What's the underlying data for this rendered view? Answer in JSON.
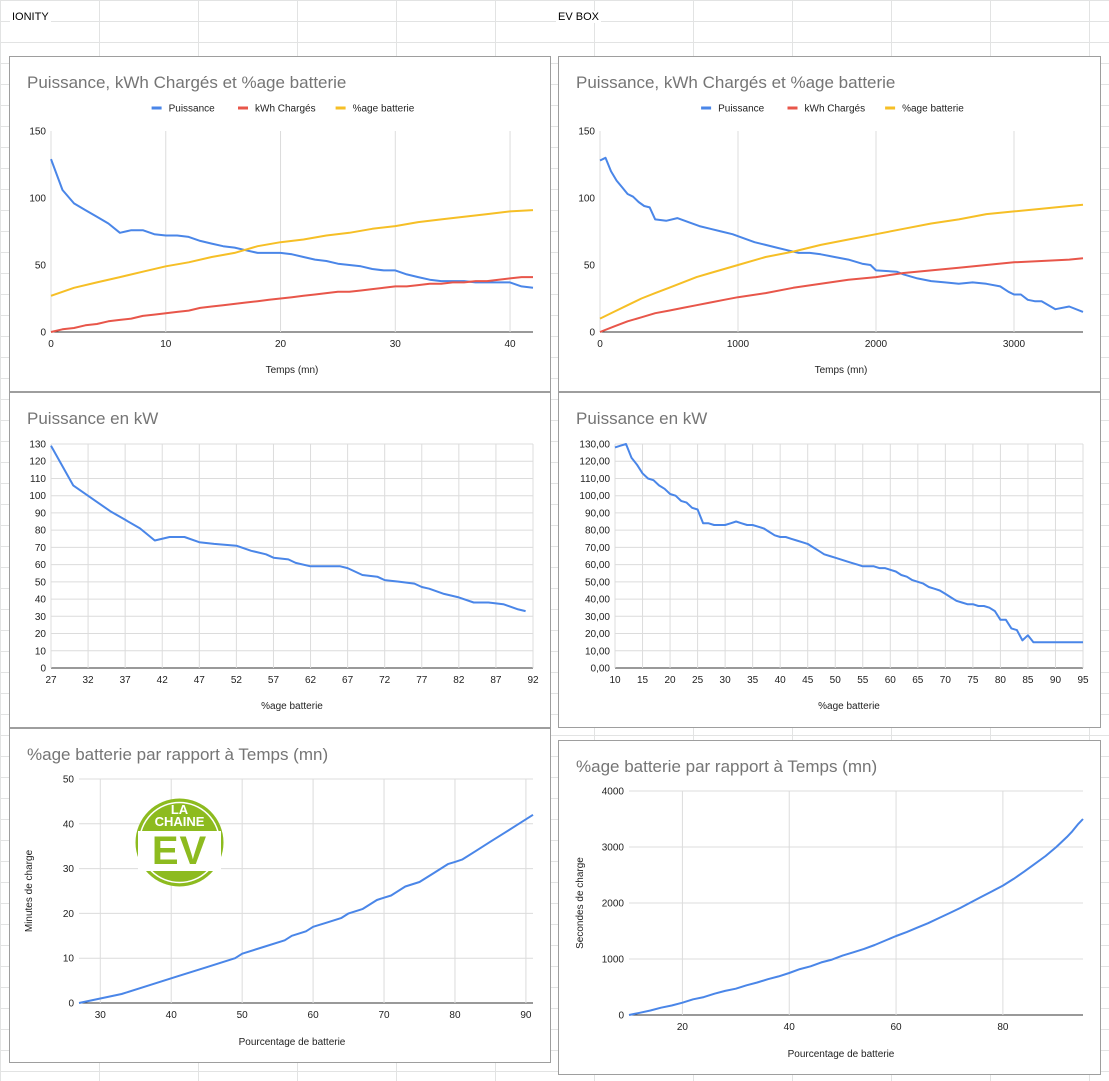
{
  "sheet": {
    "labels": [
      "IONITY",
      "EV BOX"
    ]
  },
  "logo": {
    "line1": "LA",
    "line2": "CHAINE",
    "line3": "EV",
    "color": "#8dbb1f"
  },
  "colors": {
    "Puissance": "#4a86e8",
    "kWh Chargés": "#e8564a",
    "%age batterie": "#f6bf26"
  },
  "chart_data": [
    {
      "id": "ionity-multi",
      "type": "line",
      "title": "Puissance, kWh Chargés et %age batterie",
      "xlabel": "Temps (mn)",
      "ylabel": "",
      "xlim": [
        0,
        42
      ],
      "ylim": [
        0,
        150
      ],
      "xticks": [
        0,
        10,
        20,
        30,
        40
      ],
      "yticks": [
        0,
        50,
        100,
        150
      ],
      "grid": "vertical",
      "legend": "top",
      "series": [
        {
          "name": "Puissance",
          "color": "#4a86e8",
          "x": [
            0,
            1,
            2,
            3,
            4,
            5,
            6,
            7,
            8,
            9,
            10,
            11,
            12,
            13,
            14,
            15,
            16,
            17,
            18,
            19,
            20,
            21,
            22,
            23,
            24,
            25,
            26,
            27,
            28,
            29,
            30,
            31,
            32,
            33,
            34,
            35,
            36,
            37,
            38,
            39,
            40,
            41,
            42
          ],
          "y": [
            129,
            106,
            96,
            91,
            86,
            81,
            74,
            76,
            76,
            73,
            72,
            72,
            71,
            68,
            66,
            64,
            63,
            61,
            59,
            59,
            59,
            58,
            56,
            54,
            53,
            51,
            50,
            49,
            47,
            46,
            46,
            43,
            41,
            39,
            38,
            38,
            38,
            37,
            37,
            37,
            37,
            34,
            33
          ]
        },
        {
          "name": "kWh Chargés",
          "color": "#e8564a",
          "x": [
            0,
            1,
            2,
            3,
            4,
            5,
            6,
            7,
            8,
            9,
            10,
            11,
            12,
            13,
            14,
            15,
            16,
            17,
            18,
            19,
            20,
            21,
            22,
            23,
            24,
            25,
            26,
            27,
            28,
            29,
            30,
            31,
            32,
            33,
            34,
            35,
            36,
            37,
            38,
            39,
            40,
            41,
            42
          ],
          "y": [
            0,
            2,
            3,
            5,
            6,
            8,
            9,
            10,
            12,
            13,
            14,
            15,
            16,
            18,
            19,
            20,
            21,
            22,
            23,
            24,
            25,
            26,
            27,
            28,
            29,
            30,
            30,
            31,
            32,
            33,
            34,
            34,
            35,
            36,
            36,
            37,
            37,
            38,
            38,
            39,
            40,
            41,
            41
          ]
        },
        {
          "name": "%age batterie",
          "color": "#f6bf26",
          "x": [
            0,
            2,
            4,
            6,
            8,
            10,
            12,
            14,
            16,
            18,
            20,
            22,
            24,
            26,
            28,
            30,
            32,
            34,
            36,
            38,
            40,
            42
          ],
          "y": [
            27,
            33,
            37,
            41,
            45,
            49,
            52,
            56,
            59,
            64,
            67,
            69,
            72,
            74,
            77,
            79,
            82,
            84,
            86,
            88,
            90,
            91
          ]
        }
      ]
    },
    {
      "id": "evbox-multi",
      "type": "line",
      "title": "Puissance, kWh Chargés et %age batterie",
      "xlabel": "Temps (mn)",
      "ylabel": "",
      "xlim": [
        0,
        3500
      ],
      "ylim": [
        0,
        150
      ],
      "xticks": [
        0,
        1000,
        2000,
        3000
      ],
      "yticks": [
        0,
        50,
        100,
        150
      ],
      "grid": "vertical",
      "legend": "top",
      "series": [
        {
          "name": "Puissance",
          "color": "#4a86e8",
          "x": [
            0,
            40,
            80,
            120,
            160,
            200,
            240,
            280,
            320,
            360,
            400,
            480,
            560,
            640,
            720,
            800,
            880,
            960,
            1040,
            1120,
            1200,
            1280,
            1360,
            1440,
            1520,
            1600,
            1700,
            1800,
            1900,
            1960,
            2000,
            2150,
            2200,
            2300,
            2400,
            2500,
            2600,
            2700,
            2800,
            2900,
            2960,
            3000,
            3050,
            3100,
            3150,
            3200,
            3300,
            3400,
            3500
          ],
          "y": [
            128,
            130,
            120,
            113,
            108,
            103,
            101,
            97,
            94,
            93,
            84,
            83,
            85,
            82,
            79,
            77,
            75,
            73,
            70,
            67,
            65,
            63,
            61,
            59,
            59,
            58,
            56,
            54,
            51,
            50,
            46,
            45,
            43,
            40,
            38,
            37,
            36,
            37,
            36,
            34,
            30,
            28,
            28,
            24,
            23,
            23,
            17,
            19,
            15
          ]
        },
        {
          "name": "kWh Chargés",
          "color": "#e8564a",
          "x": [
            0,
            100,
            200,
            300,
            400,
            500,
            600,
            700,
            800,
            900,
            1000,
            1200,
            1400,
            1600,
            1800,
            2000,
            2200,
            2400,
            2600,
            2800,
            3000,
            3200,
            3400,
            3500
          ],
          "y": [
            0,
            4,
            8,
            11,
            14,
            16,
            18,
            20,
            22,
            24,
            26,
            29,
            33,
            36,
            39,
            41,
            44,
            46,
            48,
            50,
            52,
            53,
            54,
            55
          ]
        },
        {
          "name": "%age batterie",
          "color": "#f6bf26",
          "x": [
            0,
            100,
            200,
            300,
            400,
            500,
            600,
            700,
            800,
            900,
            1000,
            1200,
            1400,
            1600,
            1800,
            2000,
            2200,
            2400,
            2600,
            2800,
            3000,
            3200,
            3400,
            3500
          ],
          "y": [
            10,
            15,
            20,
            25,
            29,
            33,
            37,
            41,
            44,
            47,
            50,
            56,
            60,
            65,
            69,
            73,
            77,
            81,
            84,
            88,
            90,
            92,
            94,
            95
          ]
        }
      ]
    },
    {
      "id": "ionity-power",
      "type": "line",
      "title": "Puissance en kW",
      "xlabel": "%age batterie",
      "ylabel": "",
      "xlim": [
        27,
        92
      ],
      "ylim": [
        0,
        130
      ],
      "xticks": [
        27,
        32,
        37,
        42,
        47,
        52,
        57,
        62,
        67,
        72,
        77,
        82,
        87,
        92
      ],
      "yticks": [
        0,
        10,
        20,
        30,
        40,
        50,
        60,
        70,
        80,
        90,
        100,
        110,
        120,
        130
      ],
      "ytick_labels": [
        "0",
        "10",
        "20",
        "30",
        "40",
        "50",
        "60",
        "70",
        "80",
        "90",
        "100",
        "110",
        "120",
        "130"
      ],
      "grid": "both",
      "legend": "none",
      "series": [
        {
          "name": "",
          "color": "#4a86e8",
          "x": [
            27,
            30,
            33,
            35,
            37,
            39,
            41,
            43,
            45,
            47,
            49,
            52,
            54,
            56,
            57,
            59,
            60,
            62,
            66,
            67,
            69,
            71,
            72,
            74,
            76,
            77,
            78,
            80,
            82,
            84,
            85,
            86,
            88,
            90,
            91
          ],
          "y": [
            129,
            106,
            97,
            91,
            86,
            81,
            74,
            76,
            76,
            73,
            72,
            71,
            68,
            66,
            64,
            63,
            61,
            59,
            59,
            58,
            54,
            53,
            51,
            50,
            49,
            47,
            46,
            43,
            41,
            38,
            38,
            38,
            37,
            34,
            33
          ]
        }
      ]
    },
    {
      "id": "evbox-power",
      "type": "line",
      "title": "Puissance en kW",
      "xlabel": "%age batterie",
      "ylabel": "",
      "xlim": [
        10,
        95
      ],
      "ylim": [
        0,
        130
      ],
      "xticks": [
        10,
        15,
        20,
        25,
        30,
        35,
        40,
        45,
        50,
        55,
        60,
        65,
        70,
        75,
        80,
        85,
        90,
        95
      ],
      "yticks": [
        0,
        10,
        20,
        30,
        40,
        50,
        60,
        70,
        80,
        90,
        100,
        110,
        120,
        130
      ],
      "ytick_labels": [
        "0,00",
        "10,00",
        "20,00",
        "30,00",
        "40,00",
        "50,00",
        "60,00",
        "70,00",
        "80,00",
        "90,00",
        "100,00",
        "110,00",
        "120,00",
        "130,00"
      ],
      "grid": "both",
      "legend": "none",
      "series": [
        {
          "name": "",
          "color": "#4a86e8",
          "x": [
            10,
            11,
            12,
            13,
            14,
            15,
            16,
            17,
            18,
            19,
            20,
            21,
            22,
            23,
            24,
            25,
            26,
            27,
            28,
            29,
            30,
            31,
            32,
            33,
            34,
            35,
            36,
            37,
            38,
            39,
            40,
            41,
            42,
            43,
            44,
            45,
            46,
            47,
            48,
            49,
            50,
            51,
            52,
            53,
            54,
            55,
            56,
            57,
            58,
            59,
            60,
            61,
            62,
            63,
            64,
            65,
            66,
            67,
            68,
            69,
            70,
            71,
            72,
            73,
            74,
            75,
            76,
            77,
            78,
            79,
            80,
            81,
            82,
            83,
            84,
            85,
            86,
            87,
            88,
            89,
            90,
            91,
            92,
            93,
            94,
            95
          ],
          "y": [
            128,
            129,
            130,
            122,
            118,
            113,
            110,
            109,
            106,
            104,
            101,
            100,
            97,
            96,
            93,
            92,
            84,
            84,
            83,
            83,
            83,
            84,
            85,
            84,
            83,
            83,
            82,
            81,
            79,
            77,
            76,
            76,
            75,
            74,
            73,
            72,
            70,
            68,
            66,
            65,
            64,
            63,
            62,
            61,
            60,
            59,
            59,
            59,
            58,
            58,
            57,
            56,
            54,
            53,
            51,
            50,
            49,
            47,
            46,
            45,
            43,
            41,
            39,
            38,
            37,
            37,
            36,
            36,
            35,
            33,
            28,
            28,
            23,
            22,
            16,
            19,
            15,
            15,
            15,
            15,
            15,
            15,
            15,
            15,
            15,
            15
          ]
        }
      ]
    },
    {
      "id": "ionity-time",
      "type": "line",
      "title": "%age batterie par rapport à Temps (mn)",
      "xlabel": "Pourcentage de batterie",
      "ylabel": "Minutes de charge",
      "xlim": [
        27,
        91
      ],
      "ylim": [
        0,
        50
      ],
      "xticks": [
        30,
        40,
        50,
        60,
        70,
        80,
        90
      ],
      "yticks": [
        0,
        10,
        20,
        30,
        40,
        50
      ],
      "grid": "both",
      "legend": "none",
      "series": [
        {
          "name": "",
          "color": "#4a86e8",
          "x": [
            27,
            30,
            33,
            37,
            41,
            45,
            49,
            50,
            53,
            56,
            57,
            59,
            60,
            62,
            64,
            65,
            67,
            69,
            70,
            71,
            73,
            75,
            77,
            79,
            80,
            81,
            83,
            85,
            87,
            89,
            91
          ],
          "y": [
            0,
            1,
            2,
            4,
            6,
            8,
            10,
            11,
            12.5,
            14,
            15,
            16,
            17,
            18,
            19,
            20,
            21,
            23,
            23.5,
            24,
            26,
            27,
            29,
            31,
            31.5,
            32,
            34,
            36,
            38,
            40,
            42
          ]
        }
      ]
    },
    {
      "id": "evbox-time",
      "type": "line",
      "title": "%age batterie par rapport à Temps (mn)",
      "xlabel": "Pourcentage de batterie",
      "ylabel": "Secondes de charge",
      "xlim": [
        10,
        95
      ],
      "ylim": [
        0,
        4000
      ],
      "xticks": [
        20,
        40,
        60,
        80
      ],
      "yticks": [
        0,
        1000,
        2000,
        3000,
        4000
      ],
      "grid": "both",
      "legend": "none",
      "series": [
        {
          "name": "",
          "color": "#4a86e8",
          "x": [
            10,
            12,
            14,
            16,
            18,
            20,
            22,
            24,
            26,
            28,
            30,
            32,
            34,
            36,
            38,
            40,
            42,
            44,
            46,
            48,
            50,
            52,
            54,
            56,
            58,
            60,
            62,
            64,
            66,
            68,
            70,
            72,
            74,
            76,
            78,
            80,
            82,
            84,
            86,
            88,
            90,
            91,
            92,
            93,
            94,
            95
          ],
          "y": [
            0,
            40,
            80,
            130,
            170,
            220,
            280,
            320,
            380,
            430,
            470,
            530,
            580,
            640,
            690,
            750,
            820,
            870,
            940,
            990,
            1060,
            1120,
            1180,
            1250,
            1330,
            1410,
            1480,
            1560,
            1640,
            1730,
            1820,
            1910,
            2010,
            2110,
            2210,
            2310,
            2430,
            2560,
            2700,
            2840,
            3000,
            3090,
            3180,
            3280,
            3400,
            3500
          ]
        }
      ]
    }
  ]
}
